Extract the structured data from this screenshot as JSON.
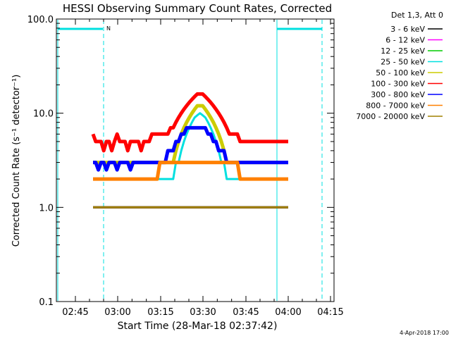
{
  "chart_data": {
    "type": "line",
    "title": "HESSI Observing Summary Count Rates, Corrected",
    "xlabel": "Start Time (28-Mar-18 02:37:42)",
    "ylabel": "Corrected Count Rate (s⁻¹ detector⁻¹)",
    "yscale": "log",
    "ylim": [
      0.1,
      100.0
    ],
    "y_ticks": [
      "0.1",
      "1.0",
      "10.0",
      "100.0"
    ],
    "x_ticks": [
      "02:45",
      "03:00",
      "03:15",
      "03:30",
      "03:45",
      "04:00",
      "04:15"
    ],
    "footer_date": "4-Apr-2018 17:00",
    "legend": {
      "header": "Det 1,3, Att 0",
      "placement": "top-right outside"
    },
    "series": [
      {
        "name": "3 - 6 keV",
        "color": "#000000",
        "values": [
          1,
          1,
          1,
          1,
          1,
          1,
          1,
          1,
          1,
          1,
          1,
          1,
          1,
          1,
          1,
          1,
          1,
          1,
          1,
          1,
          1,
          1,
          1,
          1,
          1,
          1,
          1,
          1,
          1,
          1,
          1,
          1,
          1,
          1,
          1,
          1,
          1,
          1,
          1,
          1,
          1,
          1,
          1,
          1,
          1,
          1,
          1,
          1,
          1,
          1,
          1,
          1,
          1,
          1,
          1,
          1,
          1,
          1,
          1,
          1,
          1,
          1,
          1,
          1,
          1,
          1,
          1,
          1,
          1,
          1,
          1,
          1,
          1,
          1
        ]
      },
      {
        "name": "6 - 12 keV",
        "color": "#ff00ff",
        "values": [
          1,
          1,
          1,
          1,
          1,
          1,
          1,
          1,
          1,
          1,
          1,
          1,
          1,
          1,
          1,
          1,
          1,
          1,
          1,
          1,
          1,
          1,
          1,
          1,
          1,
          1,
          1,
          1,
          1,
          1,
          1,
          1,
          1,
          1,
          1,
          1,
          1,
          1,
          1,
          1,
          1,
          1,
          1,
          1,
          1,
          1,
          1,
          1,
          1,
          1,
          1,
          1,
          1,
          1,
          1,
          1,
          1,
          1,
          1,
          1,
          1,
          1,
          1,
          1,
          1,
          1,
          1,
          1,
          1,
          1,
          1,
          1,
          1,
          1
        ]
      },
      {
        "name": "12 - 25 keV",
        "color": "#00cc00",
        "values": [
          1,
          1,
          1,
          1,
          1,
          1,
          1,
          1,
          1,
          1,
          1,
          1,
          1,
          1,
          1,
          1,
          1,
          1,
          1,
          1,
          1,
          1,
          1,
          1,
          1,
          1,
          1,
          1,
          1,
          1,
          1,
          1,
          1,
          1,
          1,
          1,
          1,
          1,
          1,
          1,
          1,
          1,
          1,
          1,
          1,
          1,
          1,
          1,
          1,
          1,
          1,
          1,
          1,
          1,
          1,
          1,
          1,
          1,
          1,
          1,
          1,
          1,
          1,
          1,
          1,
          1,
          1,
          1,
          1,
          1,
          1,
          1,
          1,
          1
        ]
      },
      {
        "name": "25 - 50 keV",
        "color": "#00e0e0",
        "values": [
          2,
          2,
          2,
          2,
          2,
          2,
          2,
          2,
          2,
          2,
          2,
          2,
          2,
          2,
          2,
          2,
          2,
          2,
          2,
          2,
          2,
          2,
          2,
          2,
          2,
          2,
          2,
          2,
          2,
          2,
          2,
          3,
          3,
          4,
          5,
          6,
          7,
          8,
          9,
          9.5,
          10,
          9.5,
          9,
          8,
          7,
          6,
          5,
          4,
          3,
          3,
          2,
          2,
          2,
          2,
          2,
          2,
          2,
          2,
          2,
          2,
          2,
          2,
          2,
          2,
          2,
          2,
          2,
          2,
          2,
          2,
          2,
          2,
          2,
          2
        ]
      },
      {
        "name": "50 - 100 keV",
        "color": "#cccc00",
        "values": [
          3,
          3,
          3,
          3,
          3,
          3,
          3,
          3,
          3,
          3,
          3,
          3,
          3,
          3,
          3,
          3,
          3,
          3,
          3,
          3,
          3,
          3,
          3,
          3,
          3,
          3,
          3,
          3,
          3,
          3,
          3,
          4,
          5,
          6,
          7,
          8,
          9,
          10,
          11,
          12,
          12,
          12,
          11,
          10,
          9,
          8,
          7,
          6,
          5,
          4,
          3,
          3,
          3,
          3,
          3,
          3,
          3,
          3,
          3,
          3,
          3,
          3,
          3,
          3,
          3,
          3,
          3,
          3,
          3,
          3,
          3,
          3,
          3,
          3
        ]
      },
      {
        "name": "100 - 300 keV",
        "color": "#ff0000",
        "values": [
          6,
          5,
          5,
          5,
          4,
          5,
          5,
          4,
          5,
          6,
          5,
          5,
          5,
          4,
          5,
          5,
          5,
          5,
          4,
          5,
          5,
          5,
          6,
          6,
          6,
          6,
          6,
          6,
          6,
          7,
          7,
          8,
          9,
          10,
          11,
          12,
          13,
          14,
          15,
          16,
          16,
          16,
          15,
          14,
          13,
          12,
          11,
          10,
          9,
          8,
          7,
          6,
          6,
          6,
          6,
          5,
          5,
          5,
          5,
          5,
          5,
          5,
          5,
          5,
          5,
          5,
          5,
          5,
          5,
          5,
          5,
          5,
          5,
          5
        ]
      },
      {
        "name": "300 - 800 keV",
        "color": "#0000ff",
        "values": [
          3,
          3,
          2.5,
          3,
          3,
          2.5,
          3,
          3,
          3,
          2.5,
          3,
          3,
          3,
          3,
          2.5,
          3,
          3,
          3,
          3,
          3,
          3,
          3,
          3,
          3,
          3,
          3,
          3,
          3,
          4,
          4,
          4,
          5,
          5,
          6,
          6,
          7,
          7,
          7,
          7,
          7,
          7,
          7,
          7,
          6,
          6,
          5,
          5,
          4,
          4,
          4,
          3,
          3,
          3,
          3,
          3,
          3,
          3,
          3,
          3,
          3,
          3,
          3,
          3,
          3,
          3,
          3,
          3,
          3,
          3,
          3,
          3,
          3,
          3,
          3
        ]
      },
      {
        "name": "800 - 7000 keV",
        "color": "#ff8000",
        "values": [
          2,
          2,
          2,
          2,
          2,
          2,
          2,
          2,
          2,
          2,
          2,
          2,
          2,
          2,
          2,
          2,
          2,
          2,
          2,
          2,
          2,
          2,
          2,
          2,
          2,
          3,
          3,
          3,
          3,
          3,
          3,
          3,
          3,
          3,
          3,
          3,
          3,
          3,
          3,
          3,
          3,
          3,
          3,
          3,
          3,
          3,
          3,
          3,
          3,
          3,
          3,
          3,
          3,
          3,
          3,
          2,
          2,
          2,
          2,
          2,
          2,
          2,
          2,
          2,
          2,
          2,
          2,
          2,
          2,
          2,
          2,
          2,
          2,
          2
        ]
      },
      {
        "name": "7000 - 20000 keV",
        "color": "#a08000",
        "values": [
          1,
          1,
          1,
          1,
          1,
          1,
          1,
          1,
          1,
          1,
          1,
          1,
          1,
          1,
          1,
          1,
          1,
          1,
          1,
          1,
          1,
          1,
          1,
          1,
          1,
          1,
          1,
          1,
          1,
          1,
          1,
          1,
          1,
          1,
          1,
          1,
          1,
          1,
          1,
          1,
          1,
          1,
          1,
          1,
          1,
          1,
          1,
          1,
          1,
          1,
          1,
          1,
          1,
          1,
          1,
          1,
          1,
          1,
          1,
          1,
          1,
          1,
          1,
          1,
          1,
          1,
          1,
          1,
          1,
          1,
          1,
          1,
          1,
          1
        ]
      }
    ],
    "markers": {
      "color": "#00e0e0",
      "label": "N"
    }
  }
}
